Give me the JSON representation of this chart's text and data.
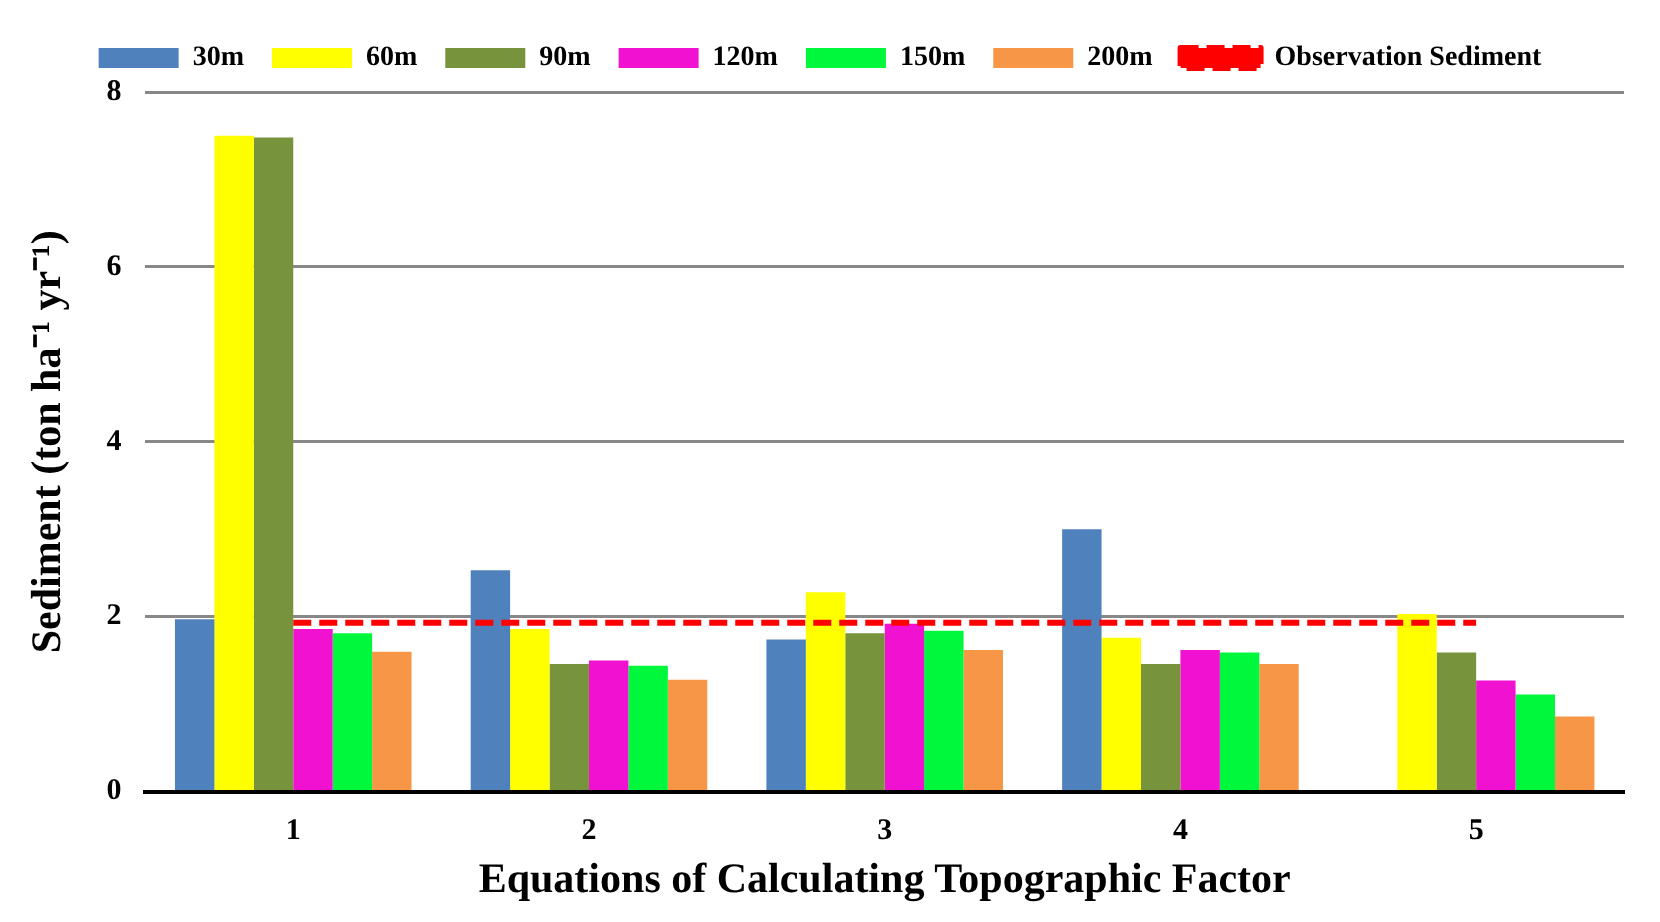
{
  "chart_data": {
    "type": "bar",
    "xlabel": "Equations of Calculating Topographic Factor",
    "ylabel": "Sediment (ton ha⁻¹ yr⁻¹)",
    "categories": [
      "1",
      "2",
      "3",
      "4",
      "5"
    ],
    "series": [
      {
        "name": "30m",
        "color": "#4f81bd",
        "values": [
          1.97,
          2.53,
          1.74,
          3.0,
          null
        ]
      },
      {
        "name": "60m",
        "color": "#ffff00",
        "values": [
          7.5,
          1.86,
          2.28,
          1.76,
          2.03
        ]
      },
      {
        "name": "90m",
        "color": "#77933c",
        "values": [
          7.48,
          1.46,
          1.81,
          1.46,
          1.59
        ]
      },
      {
        "name": "120m",
        "color": "#f012d0",
        "values": [
          1.86,
          1.5,
          1.92,
          1.62,
          1.27
        ]
      },
      {
        "name": "150m",
        "color": "#00f83c",
        "values": [
          1.81,
          1.44,
          1.84,
          1.59,
          1.11
        ]
      },
      {
        "name": "200m",
        "color": "#f79646",
        "values": [
          1.6,
          1.28,
          1.62,
          1.46,
          0.86
        ]
      },
      {
        "name": "Observation Sediment",
        "type": "line",
        "color": "#ff0000",
        "line_style": "dashed",
        "marker": "none",
        "values": [
          1.93,
          1.93,
          1.93,
          1.93,
          1.93
        ]
      }
    ],
    "ylim": [
      0,
      8
    ],
    "yticks": [
      0,
      2,
      4,
      6,
      8
    ],
    "grid": "y",
    "legend": "top"
  }
}
